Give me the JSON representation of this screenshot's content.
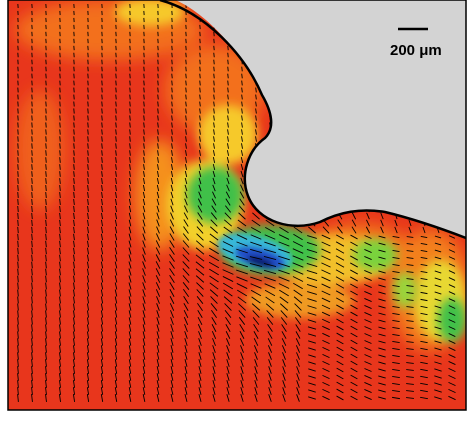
{
  "scale_bar": {
    "label": "200 μm"
  },
  "colors": {
    "background_solid": "#d3d3d3",
    "field_red": "#e8361c",
    "field_orange": "#f3701f",
    "field_yellow": "#f6c92a",
    "field_green": "#3fc04a",
    "field_cyan": "#37b8d8",
    "field_blue": "#2050c8",
    "field_navy": "#0b1a6e",
    "interface_line": "#000000",
    "vector_color": "#000000"
  }
}
